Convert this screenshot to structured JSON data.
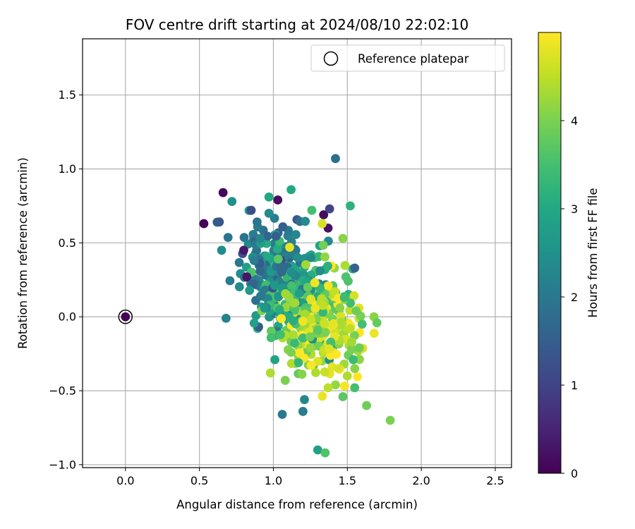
{
  "chart_data": {
    "type": "scatter",
    "title": "FOV centre drift starting at 2024/08/10 22:02:10",
    "xlabel": "Angular distance from reference (arcmin)",
    "ylabel": "Rotation from reference (arcmin)",
    "xlim": [
      -0.29,
      2.61
    ],
    "ylim": [
      -1.02,
      1.88
    ],
    "x_ticks": [
      0.0,
      0.5,
      1.0,
      1.5,
      2.0,
      2.5
    ],
    "x_tick_labels": [
      "0.0",
      "0.5",
      "1.0",
      "1.5",
      "2.0",
      "2.5"
    ],
    "y_ticks": [
      -1.0,
      -0.5,
      0.0,
      0.5,
      1.0,
      1.5
    ],
    "y_tick_labels": [
      "−1.0",
      "−0.5",
      "0.0",
      "0.5",
      "1.0",
      "1.5"
    ],
    "grid": true,
    "legend": {
      "placement": "top-right",
      "entries": [
        "Reference platepar"
      ]
    },
    "reference_point": {
      "x": 0.0,
      "y": 0.0
    },
    "colorbar": {
      "label": "Hours from first FF file",
      "colormap": "viridis",
      "range": [
        0,
        5.0
      ],
      "ticks": [
        0,
        1,
        2,
        3,
        4
      ],
      "tick_labels": [
        "0",
        "1",
        "2",
        "3",
        "4"
      ]
    },
    "series": [
      {
        "points": [
          {
            "x": 0.0,
            "y": 0.0,
            "h": 0.0
          },
          {
            "x": 0.53,
            "y": 0.63,
            "h": 0.05
          },
          {
            "x": 0.66,
            "y": 0.84,
            "h": 0.1
          },
          {
            "x": 1.03,
            "y": 0.79,
            "h": 0.2
          },
          {
            "x": 1.34,
            "y": 0.69,
            "h": 0.15
          },
          {
            "x": 1.37,
            "y": 0.6,
            "h": 0.25
          },
          {
            "x": 0.82,
            "y": 0.27,
            "h": 0.3
          },
          {
            "x": 0.8,
            "y": 0.45,
            "h": 0.35
          },
          {
            "x": 0.62,
            "y": 0.64,
            "h": 1.4
          },
          {
            "x": 0.85,
            "y": 0.72,
            "h": 1.2
          },
          {
            "x": 1.42,
            "y": 1.07,
            "h": 1.8
          },
          {
            "x": 1.55,
            "y": 0.33,
            "h": 1.6
          },
          {
            "x": 1.38,
            "y": 0.73,
            "h": 1.0
          },
          {
            "x": 0.72,
            "y": 0.78,
            "h": 2.5
          },
          {
            "x": 0.65,
            "y": 0.45,
            "h": 2.4
          },
          {
            "x": 0.68,
            "y": -0.01,
            "h": 2.2
          },
          {
            "x": 1.06,
            "y": -0.66,
            "h": 2.0
          },
          {
            "x": 1.2,
            "y": -0.64,
            "h": 2.1
          },
          {
            "x": 1.21,
            "y": -0.56,
            "h": 2.3
          },
          {
            "x": 0.97,
            "y": 0.81,
            "h": 3.0
          },
          {
            "x": 1.12,
            "y": 0.86,
            "h": 3.0
          },
          {
            "x": 1.52,
            "y": 0.75,
            "h": 3.2
          },
          {
            "x": 1.26,
            "y": 0.72,
            "h": 3.5
          },
          {
            "x": 1.3,
            "y": -0.9,
            "h": 2.8
          },
          {
            "x": 1.35,
            "y": -0.92,
            "h": 3.6
          },
          {
            "x": 1.47,
            "y": -0.54,
            "h": 3.7
          },
          {
            "x": 1.55,
            "y": -0.48,
            "h": 3.5
          },
          {
            "x": 1.63,
            "y": -0.6,
            "h": 3.9
          },
          {
            "x": 1.79,
            "y": -0.7,
            "h": 4.0
          },
          {
            "x": 1.68,
            "y": 0.0,
            "h": 4.1
          },
          {
            "x": 1.7,
            "y": -0.04,
            "h": 3.8
          },
          {
            "x": 1.6,
            "y": -0.05,
            "h": 3.5
          },
          {
            "x": 1.56,
            "y": 0.04,
            "h": 3.9
          },
          {
            "x": 0.98,
            "y": -0.38,
            "h": 4.4
          },
          {
            "x": 1.08,
            "y": -0.43,
            "h": 4.0
          },
          {
            "x": 1.44,
            "y": -0.35,
            "h": 4.7
          },
          {
            "x": 1.5,
            "y": -0.4,
            "h": 4.4
          },
          {
            "x": 1.42,
            "y": -0.46,
            "h": 4.2
          },
          {
            "x": 1.37,
            "y": -0.48,
            "h": 4.5
          },
          {
            "x": 1.2,
            "y": -0.03,
            "h": 4.9
          },
          {
            "x": 1.28,
            "y": 0.23,
            "h": 4.9
          },
          {
            "x": 1.33,
            "y": 0.63,
            "h": 4.7
          },
          {
            "x": 1.11,
            "y": 0.47,
            "h": 4.8
          },
          {
            "x": 1.47,
            "y": 0.53,
            "h": 4.1
          },
          {
            "x": 1.49,
            "y": 0.27,
            "h": 3.6
          },
          {
            "x": 1.48,
            "y": 0.13,
            "h": 3.4
          },
          {
            "x": 1.45,
            "y": 0.06,
            "h": 4.1
          },
          {
            "x": 1.52,
            "y": -0.08,
            "h": 4.5
          },
          {
            "x": 1.53,
            "y": -0.17,
            "h": 4.3
          },
          {
            "x": 1.58,
            "y": -0.21,
            "h": 3.9
          },
          {
            "x": 1.54,
            "y": -0.29,
            "h": 3.4
          },
          {
            "x": 1.55,
            "y": -0.35,
            "h": 4.1
          },
          {
            "x": 1.3,
            "y": -0.09,
            "h": 3.7
          },
          {
            "x": 1.25,
            "y": -0.21,
            "h": 4.2
          },
          {
            "x": 1.12,
            "y": -0.24,
            "h": 4.0
          },
          {
            "x": 1.17,
            "y": -0.31,
            "h": 3.3
          },
          {
            "x": 1.01,
            "y": -0.29,
            "h": 2.9
          },
          {
            "x": 0.94,
            "y": 0.06,
            "h": 2.6
          },
          {
            "x": 0.87,
            "y": 0.38,
            "h": 2.1
          },
          {
            "x": 0.91,
            "y": 0.53,
            "h": 2.3
          },
          {
            "x": 0.97,
            "y": 0.7,
            "h": 2.4
          }
        ]
      }
    ],
    "cluster_points_generated": {
      "description": "",
      "count": 0
    }
  }
}
